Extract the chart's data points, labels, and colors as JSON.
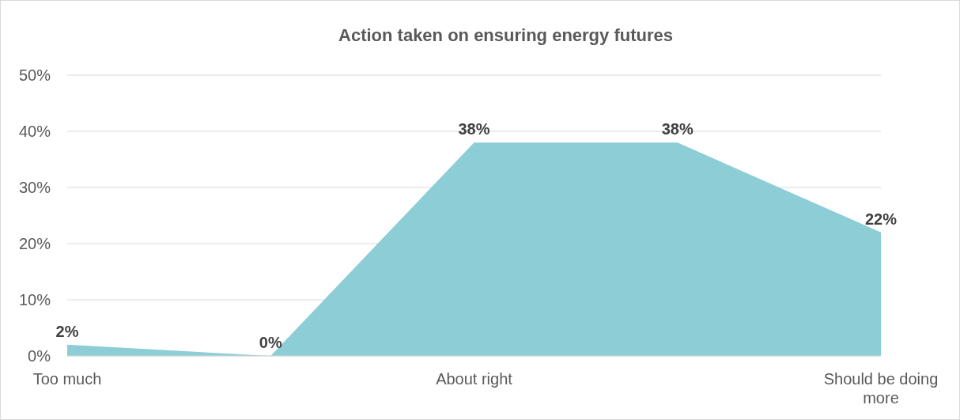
{
  "chart_data": {
    "type": "area",
    "title": "Action taken on ensuring energy futures",
    "categories": [
      "Too much",
      null,
      "About right",
      null,
      "Should be doing more"
    ],
    "series": [
      {
        "color": "#8ccdd6",
        "values": [
          2,
          0,
          38,
          38,
          22
        ],
        "value_labels": [
          "2%",
          "0%",
          "38%",
          "38%",
          "22%"
        ]
      }
    ],
    "ylim": [
      0,
      50
    ],
    "yticks": [
      {
        "value": 0,
        "label": "0%"
      },
      {
        "value": 10,
        "label": "10%"
      },
      {
        "value": 20,
        "label": "20%"
      },
      {
        "value": 30,
        "label": "30%"
      },
      {
        "value": 40,
        "label": "40%"
      },
      {
        "value": 50,
        "label": "50%"
      }
    ],
    "grid": "y"
  }
}
